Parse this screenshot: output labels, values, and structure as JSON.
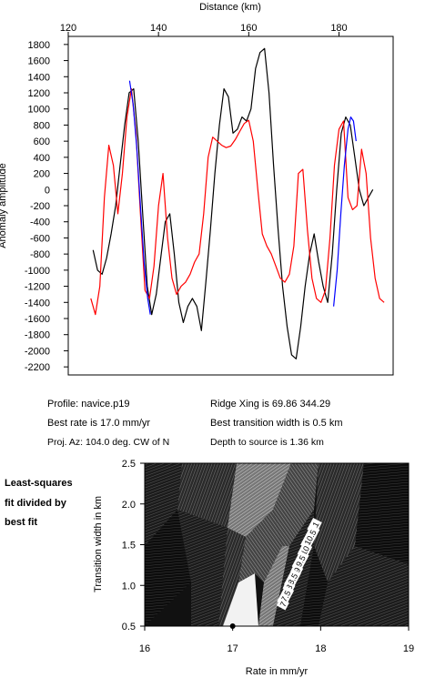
{
  "chart_data": [
    {
      "type": "line",
      "title": "",
      "xlabel": "Distance (km)",
      "ylabel": "Anomaly amplitude",
      "xlim": [
        120,
        192
      ],
      "ylim": [
        -2300,
        1900
      ],
      "xticks": [
        120,
        140,
        160,
        180
      ],
      "yticks": [
        1800,
        1600,
        1400,
        1200,
        1000,
        800,
        600,
        400,
        200,
        0,
        -200,
        -400,
        -600,
        -800,
        -1000,
        -1200,
        -1400,
        -1600,
        -1800,
        -2000,
        -2200
      ],
      "x_axis_position": "top",
      "grid": false,
      "colors": {
        "observed": "#000000",
        "model": "#ff0000",
        "fit": "#0000ff"
      },
      "series": [
        {
          "name": "",
          "color": "#000000",
          "x": [
            125.5,
            126.5,
            127.5,
            128.5,
            129.5,
            130.5,
            131.5,
            132.5,
            133.5,
            134.5,
            135.5,
            136.5,
            137.5,
            138.5,
            139.5,
            140.5,
            141.5,
            142.5,
            143.5,
            144.5,
            145.5,
            146.5,
            147.5,
            148.5,
            149.5,
            150.5,
            151.5,
            152.5,
            153.5,
            154.5,
            155.5,
            156.5,
            157.5,
            158.5,
            159.5,
            160.5,
            161.5,
            162.5,
            163.5,
            164.5,
            165.5,
            166.5,
            167.5,
            168.5,
            169.5,
            170.5,
            171.5,
            172.5,
            173.5,
            174.5,
            175.5,
            176.5,
            177.5,
            178.5,
            179.5,
            180.5,
            181.5,
            182.5,
            183.5,
            184.5,
            185.5,
            186.5,
            187.5
          ],
          "y": [
            -750,
            -1000,
            -1050,
            -850,
            -550,
            -200,
            300,
            800,
            1200,
            1250,
            600,
            -300,
            -1200,
            -1550,
            -1300,
            -850,
            -400,
            -300,
            -800,
            -1400,
            -1650,
            -1450,
            -1350,
            -1450,
            -1750,
            -1150,
            -500,
            200,
            800,
            1250,
            1150,
            700,
            750,
            900,
            850,
            1000,
            1500,
            1700,
            1750,
            1200,
            300,
            -500,
            -1200,
            -1700,
            -2050,
            -2100,
            -1700,
            -1200,
            -800,
            -550,
            -900,
            -1200,
            -1400,
            -800,
            0,
            700,
            900,
            800,
            400,
            0,
            -200,
            -100,
            0
          ]
        },
        {
          "name": "",
          "color": "#ff0000",
          "x": [
            125,
            126,
            127,
            128,
            129,
            130,
            131,
            132,
            133,
            134,
            135,
            136,
            137,
            138,
            139,
            140,
            141,
            142,
            143,
            144,
            145,
            146,
            147,
            148,
            149,
            150,
            151,
            152,
            153,
            154,
            155,
            156,
            157,
            158,
            159,
            160,
            161,
            162,
            163,
            164,
            165,
            166,
            167,
            168,
            169,
            170,
            171,
            172,
            173,
            174,
            175,
            176,
            177,
            178,
            179,
            180,
            181,
            182,
            183,
            184,
            185,
            186,
            187,
            188,
            189,
            190
          ],
          "y": [
            -1350,
            -1550,
            -1200,
            -100,
            550,
            300,
            -300,
            200,
            900,
            1250,
            700,
            -300,
            -1250,
            -1350,
            -950,
            -200,
            200,
            -600,
            -1100,
            -1300,
            -1200,
            -1150,
            -1050,
            -900,
            -800,
            -300,
            400,
            650,
            600,
            550,
            520,
            540,
            620,
            720,
            820,
            860,
            600,
            0,
            -550,
            -700,
            -800,
            -950,
            -1100,
            -1150,
            -1050,
            -700,
            200,
            250,
            -500,
            -1100,
            -1350,
            -1400,
            -1250,
            -600,
            300,
            750,
            850,
            -100,
            -250,
            -200,
            500,
            200,
            -600,
            -1100,
            -1350,
            -1400
          ]
        },
        {
          "name": "",
          "color": "#0000ff",
          "x": [
            133.6,
            134.4,
            135.2,
            136.0,
            136.8,
            137.6,
            138.2
          ],
          "y": [
            1350,
            1050,
            500,
            -200,
            -900,
            -1350,
            -1550
          ]
        },
        {
          "name": "",
          "color": "#0000ff",
          "x": [
            178.8,
            179.6,
            180.4,
            181.2,
            182.0,
            182.6,
            183.2,
            183.8
          ],
          "y": [
            -1450,
            -1000,
            -300,
            300,
            750,
            900,
            850,
            600
          ]
        }
      ]
    },
    {
      "type": "heatmap",
      "title": "",
      "xlabel": "Rate in mm/yr",
      "ylabel": "Transition width in km",
      "xlim": [
        16,
        19
      ],
      "ylim": [
        0.5,
        2.5
      ],
      "xticks": [
        16,
        17,
        18,
        19
      ],
      "yticks": [
        0.5,
        1.0,
        1.5,
        2.0,
        2.5
      ],
      "contour_labels": [
        {
          "label": "11",
          "x": 17.93,
          "y": 1.73
        },
        {
          "label": "10.5",
          "x": 17.88,
          "y": 1.59
        },
        {
          "label": "10",
          "x": 17.82,
          "y": 1.43
        },
        {
          "label": "9.5",
          "x": 17.77,
          "y": 1.3
        },
        {
          "label": "9",
          "x": 17.73,
          "y": 1.19
        },
        {
          "label": "8.5",
          "x": 17.68,
          "y": 1.08
        },
        {
          "label": "8",
          "x": 17.64,
          "y": 0.98
        },
        {
          "label": "7.5",
          "x": 17.6,
          "y": 0.87
        },
        {
          "label": "7",
          "x": 17.57,
          "y": 0.77
        }
      ],
      "best_fit_point": {
        "x": 17.0,
        "y": 0.5
      }
    }
  ],
  "info": {
    "profile": "Profile: navice.p19",
    "best_rate": "Best rate is 17.0 mm/yr",
    "proj_az": "Proj. Az: 104.0 deg. CW of N",
    "ridge_xing": "Ridge Xing is 69.86 344.29",
    "best_width": "Best transition width is 0.5 km",
    "depth": "Depth to source is    1.36 km"
  },
  "side_label": [
    "Least-squares",
    "fit divided by",
    "best fit"
  ]
}
